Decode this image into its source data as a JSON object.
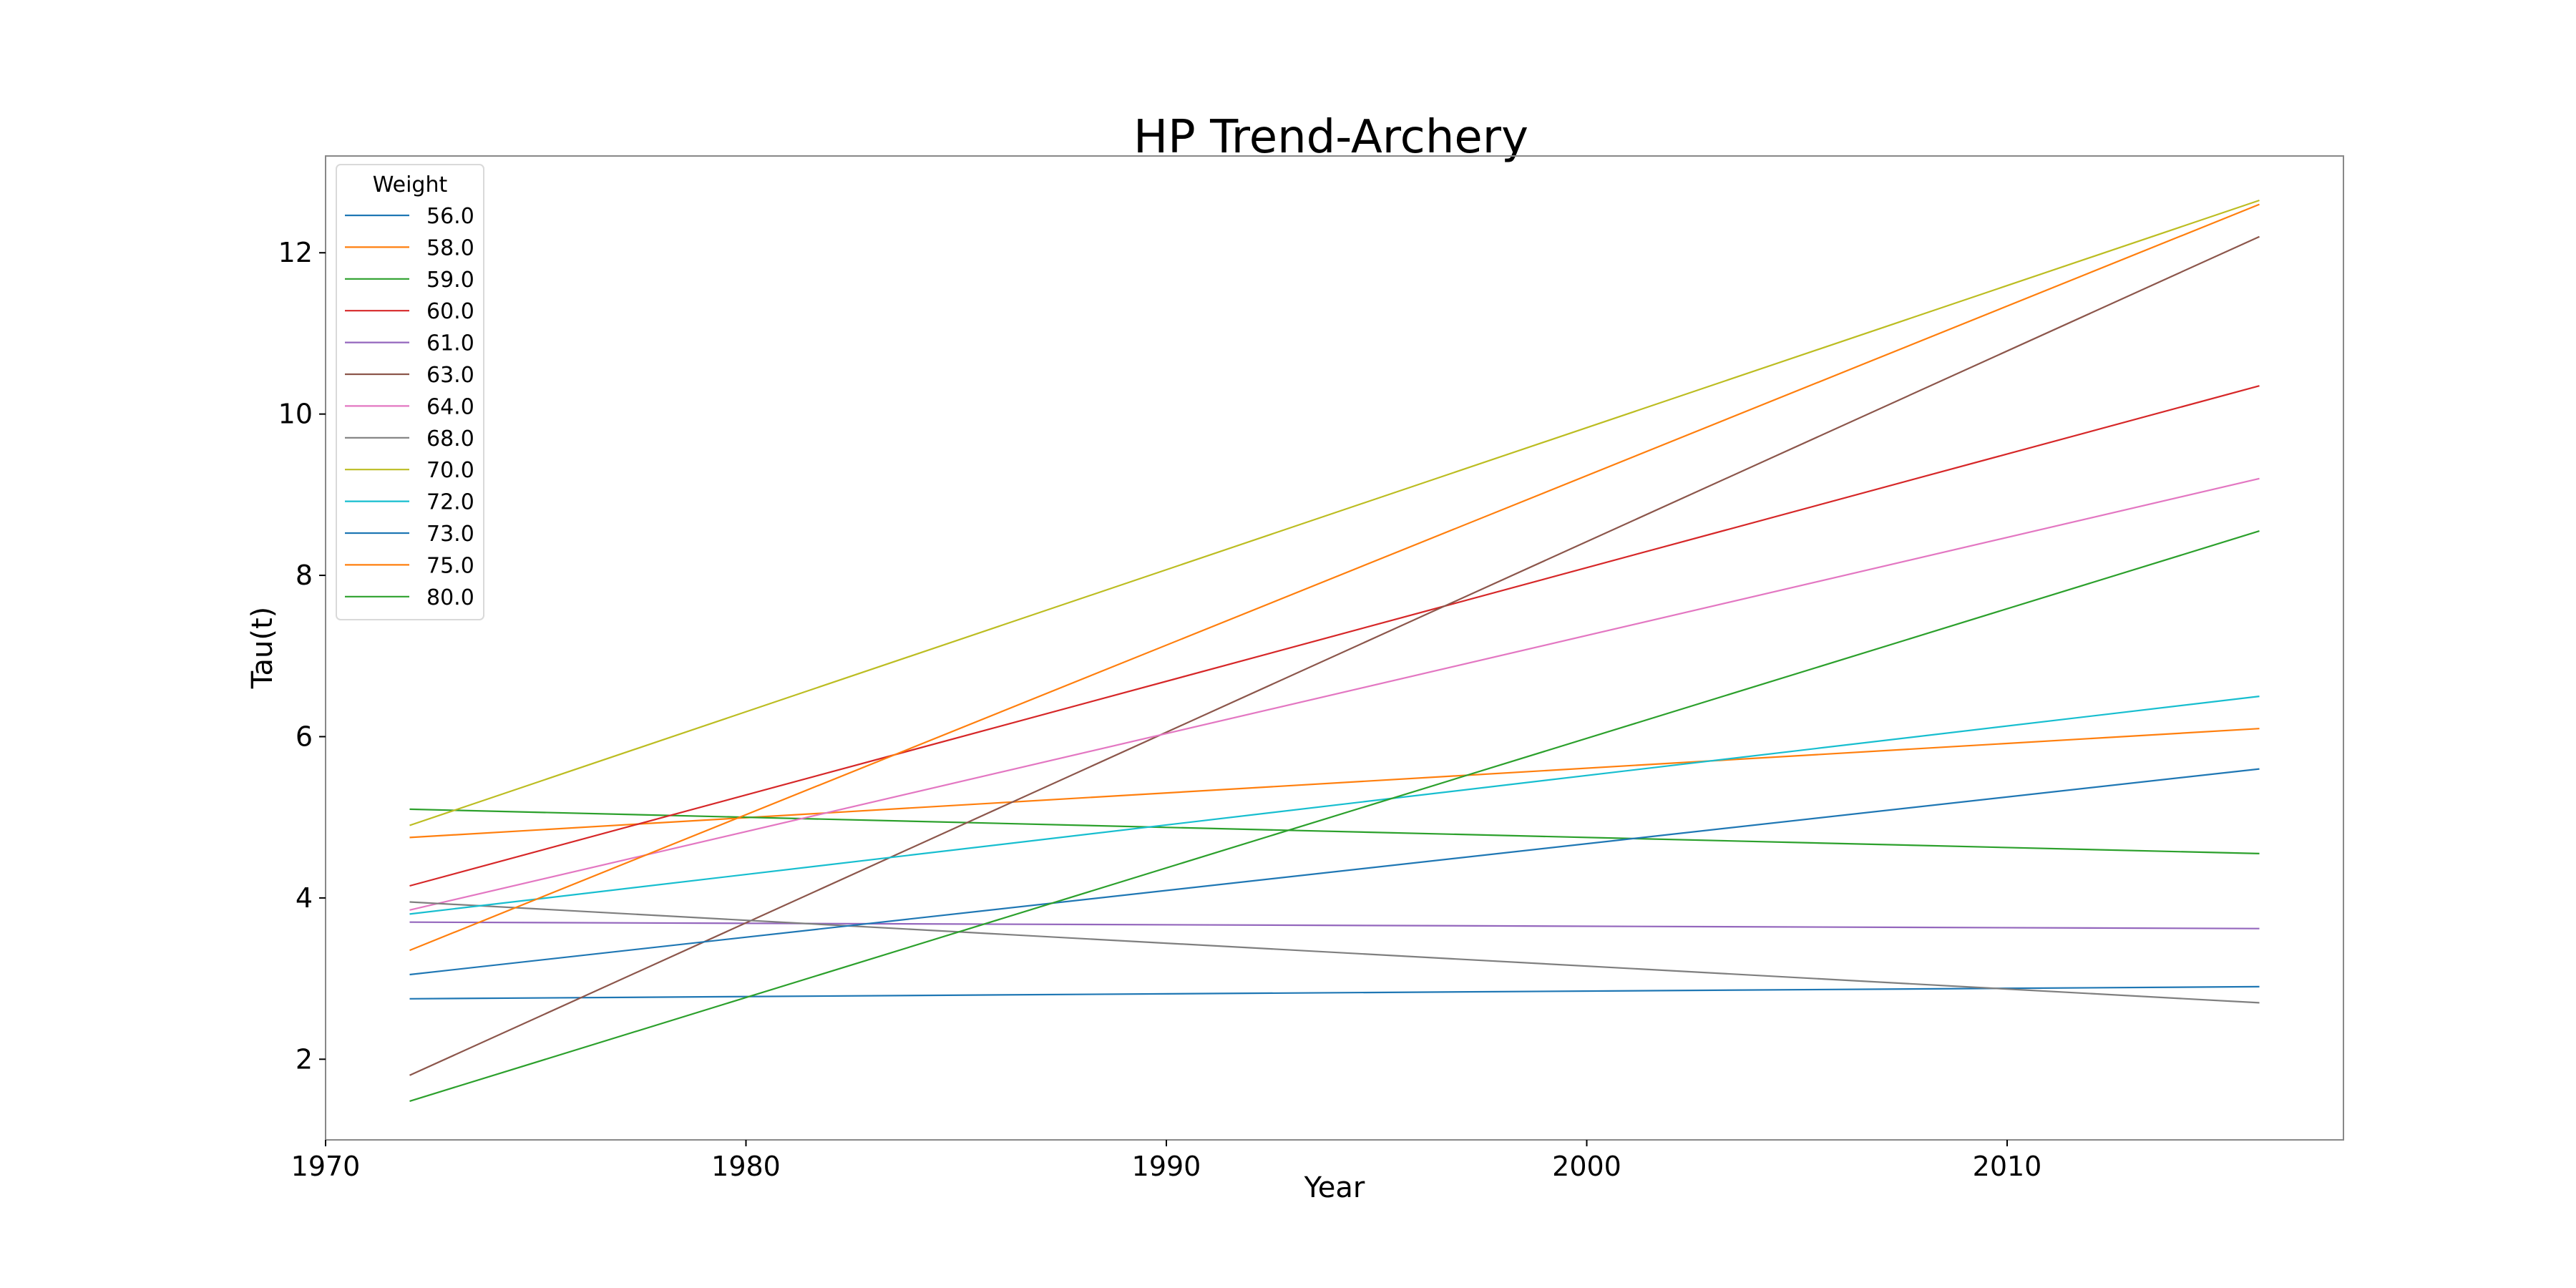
{
  "chart_data": {
    "type": "line",
    "title": "HP Trend-Archery",
    "xlabel": "Year",
    "ylabel": "Tau(t)",
    "xlim": [
      1970,
      2018
    ],
    "ylim": [
      1.0,
      13.2
    ],
    "xticks": [
      1970,
      1980,
      1990,
      2000,
      2010
    ],
    "yticks": [
      2,
      4,
      6,
      8,
      10,
      12
    ],
    "grid": false,
    "legend": {
      "title": "Weight",
      "position": "top-left"
    },
    "x": [
      1972,
      2016
    ],
    "series": [
      {
        "name": "56.0",
        "color": "#1f77b4",
        "values": [
          2.75,
          2.9
        ]
      },
      {
        "name": "58.0",
        "color": "#ff7f0e",
        "values": [
          4.75,
          6.1
        ]
      },
      {
        "name": "59.0",
        "color": "#2ca02c",
        "values": [
          5.1,
          4.55
        ]
      },
      {
        "name": "60.0",
        "color": "#d62728",
        "values": [
          4.15,
          10.35
        ]
      },
      {
        "name": "61.0",
        "color": "#9467bd",
        "values": [
          3.7,
          3.62
        ]
      },
      {
        "name": "63.0",
        "color": "#8c564b",
        "values": [
          1.8,
          12.2
        ]
      },
      {
        "name": "64.0",
        "color": "#e377c2",
        "values": [
          3.85,
          9.2
        ]
      },
      {
        "name": "68.0",
        "color": "#7f7f7f",
        "values": [
          3.95,
          2.7
        ]
      },
      {
        "name": "70.0",
        "color": "#bcbd22",
        "values": [
          4.9,
          12.65
        ]
      },
      {
        "name": "72.0",
        "color": "#17becf",
        "values": [
          3.8,
          6.5
        ]
      },
      {
        "name": "73.0",
        "color": "#1f77b4",
        "values": [
          3.05,
          5.6
        ]
      },
      {
        "name": "75.0",
        "color": "#ff7f0e",
        "values": [
          3.35,
          12.6
        ]
      },
      {
        "name": "80.0",
        "color": "#2ca02c",
        "values": [
          1.48,
          8.55
        ]
      }
    ]
  }
}
